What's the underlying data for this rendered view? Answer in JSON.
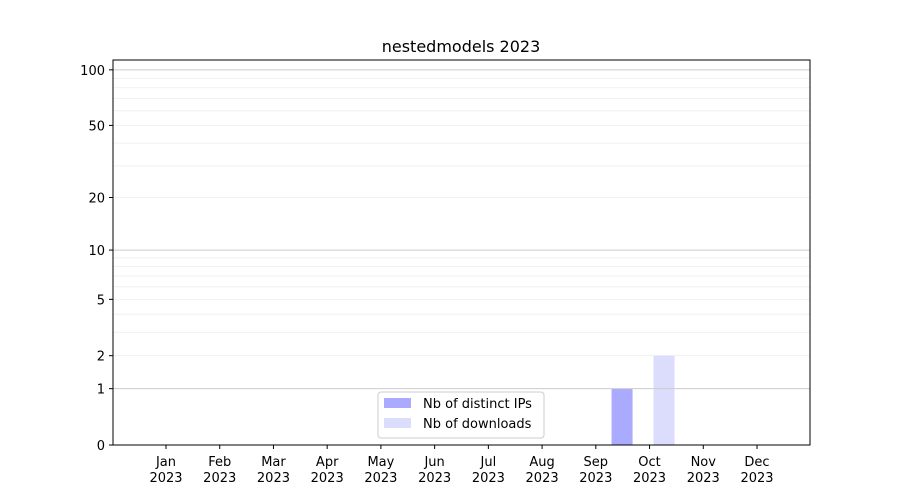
{
  "chart_data": {
    "type": "bar",
    "title": "nestedmodels 2023",
    "xlabel": "",
    "ylabel": "",
    "yscale": "log(1+y)",
    "ylim": [
      0,
      113
    ],
    "grid": true,
    "legend_placement": "bottom-center",
    "categories": [
      "Jan\n2023",
      "Feb\n2023",
      "Mar\n2023",
      "Apr\n2023",
      "May\n2023",
      "Jun\n2023",
      "Jul\n2023",
      "Aug\n2023",
      "Sep\n2023",
      "Oct\n2023",
      "Nov\n2023",
      "Dec\n2023"
    ],
    "yticks": [
      0,
      1,
      2,
      5,
      10,
      20,
      50,
      100
    ],
    "series": [
      {
        "name": "Nb of distinct IPs",
        "color": "#aaaaff",
        "values": [
          0,
          0,
          0,
          0,
          0,
          0,
          0,
          0,
          0,
          1,
          0,
          0
        ]
      },
      {
        "name": "Nb of downloads",
        "color": "#dcdcfc",
        "values": [
          0,
          0,
          0,
          0,
          0,
          0,
          0,
          0,
          0,
          2,
          0,
          0
        ]
      }
    ]
  }
}
